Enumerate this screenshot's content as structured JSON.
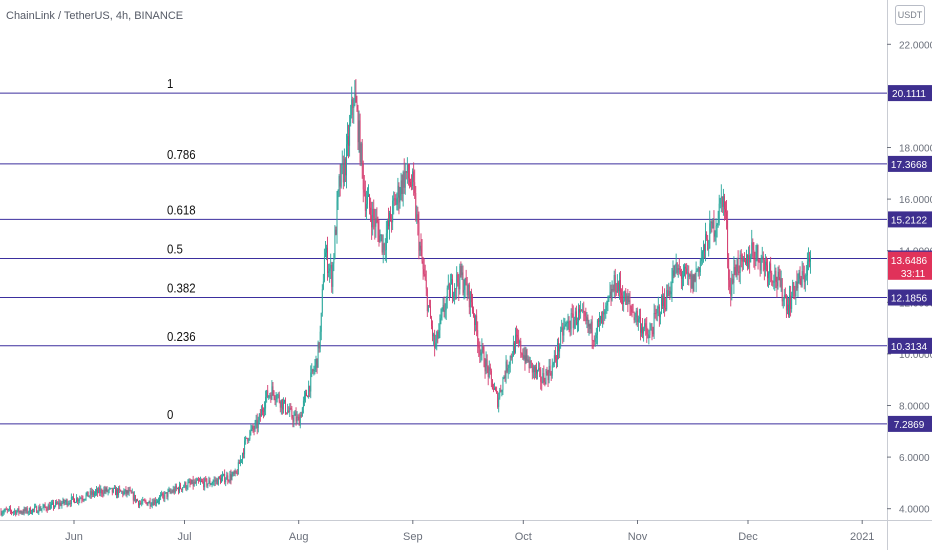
{
  "header": {
    "symbol_title": "ChainLink / TetherUS, 4h, BINANCE",
    "currency": "USDT"
  },
  "colors": {
    "background": "#ffffff",
    "up_candle": "#26a69a",
    "down_candle": "#d43b6e",
    "fib_line": "#3b2f9e",
    "fib_label_bg": "#3e2f8f",
    "price_label_bg": "#e0325a",
    "axis_text": "#6b707b",
    "axis_line": "#c9ccd3"
  },
  "chart_data": {
    "type": "candlestick",
    "timeframe": "4h",
    "x_ticks": [
      "Jun",
      "Jul",
      "Aug",
      "Sep",
      "Oct",
      "Nov",
      "Dec",
      "2021"
    ],
    "y_ticks": [
      "4.0000",
      "6.0000",
      "8.0000",
      "10.0000",
      "12.0000",
      "14.0000",
      "16.0000",
      "18.0000",
      "22.0000"
    ],
    "y_range": [
      2.4,
      22.6
    ],
    "fib_levels": [
      {
        "ratio": "1",
        "price": "20.1111",
        "value": 20.1111
      },
      {
        "ratio": "0.786",
        "price": "17.3668",
        "value": 17.3668
      },
      {
        "ratio": "0.618",
        "price": "15.2122",
        "value": 15.2122
      },
      {
        "ratio": "0.5",
        "price": "13.6993",
        "value": 13.6993
      },
      {
        "ratio": "0.382",
        "price": "12.1856",
        "value": 12.1856
      },
      {
        "ratio": "0.236",
        "price": "10.3134",
        "value": 10.3134
      },
      {
        "ratio": "0",
        "price": "7.2869",
        "value": 7.2869
      }
    ],
    "last_price": {
      "price": "13.6486",
      "value": 13.6486,
      "countdown": "33:11"
    },
    "price_path": [
      [
        "2020-05-05",
        3.4
      ],
      [
        "2020-05-12",
        3.9
      ],
      [
        "2020-05-19",
        3.9
      ],
      [
        "2020-05-26",
        4.1
      ],
      [
        "2020-06-02",
        4.4
      ],
      [
        "2020-06-09",
        4.7
      ],
      [
        "2020-06-16",
        4.6
      ],
      [
        "2020-06-19",
        4.2
      ],
      [
        "2020-06-23",
        4.3
      ],
      [
        "2020-06-28",
        4.7
      ],
      [
        "2020-07-01",
        4.9
      ],
      [
        "2020-07-05",
        5.0
      ],
      [
        "2020-07-08",
        5.0
      ],
      [
        "2020-07-12",
        5.2
      ],
      [
        "2020-07-15",
        5.3
      ],
      [
        "2020-07-18",
        6.8
      ],
      [
        "2020-07-21",
        7.3
      ],
      [
        "2020-07-23",
        8.3
      ],
      [
        "2020-07-25",
        8.6
      ],
      [
        "2020-07-30",
        7.6
      ],
      [
        "2020-08-01",
        7.4
      ],
      [
        "2020-08-02",
        7.9
      ],
      [
        "2020-08-06",
        9.8
      ],
      [
        "2020-08-07",
        10.9
      ],
      [
        "2020-08-08",
        14.0
      ],
      [
        "2020-08-10",
        13.0
      ],
      [
        "2020-08-12",
        16.5
      ],
      [
        "2020-08-14",
        17.6
      ],
      [
        "2020-08-16",
        20.1
      ],
      [
        "2020-08-17",
        19.0
      ],
      [
        "2020-08-19",
        16.1
      ],
      [
        "2020-08-22",
        15.0
      ],
      [
        "2020-08-24",
        14.2
      ],
      [
        "2020-08-27",
        15.8
      ],
      [
        "2020-08-30",
        17.0
      ],
      [
        "2020-09-01",
        16.5
      ],
      [
        "2020-09-03",
        14.0
      ],
      [
        "2020-09-05",
        12.0
      ],
      [
        "2020-09-07",
        10.2
      ],
      [
        "2020-09-09",
        11.5
      ],
      [
        "2020-09-11",
        12.5
      ],
      [
        "2020-09-14",
        13.0
      ],
      [
        "2020-09-17",
        12.0
      ],
      [
        "2020-09-19",
        10.3
      ],
      [
        "2020-09-21",
        9.5
      ],
      [
        "2020-09-24",
        8.2
      ],
      [
        "2020-09-26",
        9.3
      ],
      [
        "2020-09-29",
        10.5
      ],
      [
        "2020-10-03",
        9.5
      ],
      [
        "2020-10-06",
        9.0
      ],
      [
        "2020-10-09",
        9.5
      ],
      [
        "2020-10-12",
        11.0
      ],
      [
        "2020-10-16",
        11.5
      ],
      [
        "2020-10-20",
        10.8
      ],
      [
        "2020-10-23",
        11.4
      ],
      [
        "2020-10-26",
        12.8
      ],
      [
        "2020-10-29",
        12.0
      ],
      [
        "2020-11-01",
        11.4
      ],
      [
        "2020-11-04",
        10.6
      ],
      [
        "2020-11-07",
        11.8
      ],
      [
        "2020-11-09",
        12.2
      ],
      [
        "2020-11-11",
        13.2
      ],
      [
        "2020-11-13",
        13.1
      ],
      [
        "2020-11-16",
        12.7
      ],
      [
        "2020-11-18",
        13.6
      ],
      [
        "2020-11-20",
        14.4
      ],
      [
        "2020-11-23",
        15.4
      ],
      [
        "2020-11-24",
        16.2
      ],
      [
        "2020-11-25",
        15.3
      ],
      [
        "2020-11-26",
        12.5
      ],
      [
        "2020-11-28",
        13.5
      ],
      [
        "2020-11-30",
        13.3
      ],
      [
        "2020-12-02",
        14.1
      ],
      [
        "2020-12-05",
        13.6
      ],
      [
        "2020-12-08",
        13.1
      ],
      [
        "2020-12-10",
        12.5
      ],
      [
        "2020-12-12",
        11.9
      ],
      [
        "2020-12-14",
        12.7
      ],
      [
        "2020-12-16",
        12.9
      ],
      [
        "2020-12-17",
        13.4
      ],
      [
        "2020-12-18",
        13.65
      ]
    ]
  }
}
